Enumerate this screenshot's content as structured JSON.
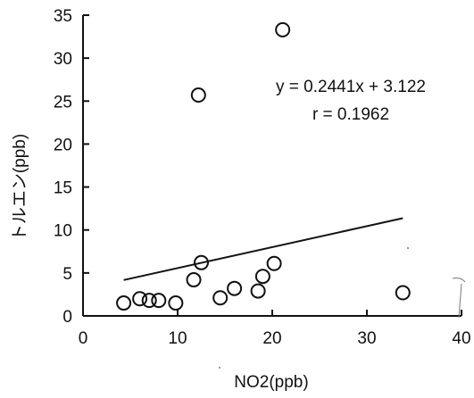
{
  "chart_data": {
    "type": "scatter",
    "xlabel": "NO2(ppb)",
    "ylabel": "トルエン(ppb)",
    "xlim": [
      0,
      40
    ],
    "ylim": [
      0,
      35
    ],
    "xticks": [
      "0",
      "10",
      "20",
      "30",
      "40"
    ],
    "yticks": [
      "0",
      "5",
      "10",
      "15",
      "20",
      "25",
      "30",
      "35"
    ],
    "grid": false,
    "points": [
      {
        "x": 4.3,
        "y": 1.5
      },
      {
        "x": 6.0,
        "y": 2.0
      },
      {
        "x": 7.0,
        "y": 1.8
      },
      {
        "x": 8.0,
        "y": 1.8
      },
      {
        "x": 9.8,
        "y": 1.5
      },
      {
        "x": 11.7,
        "y": 4.2
      },
      {
        "x": 12.2,
        "y": 25.7
      },
      {
        "x": 12.5,
        "y": 6.2
      },
      {
        "x": 14.5,
        "y": 2.1
      },
      {
        "x": 16.0,
        "y": 3.2
      },
      {
        "x": 18.5,
        "y": 2.9
      },
      {
        "x": 19.0,
        "y": 4.6
      },
      {
        "x": 20.2,
        "y": 6.1
      },
      {
        "x": 21.1,
        "y": 33.3
      },
      {
        "x": 33.8,
        "y": 2.7
      }
    ],
    "trendline": {
      "x": [
        4.3,
        33.8
      ],
      "slope": 0.2441,
      "intercept": 3.122
    },
    "annotations": {
      "equation": "y = 0.2441x + 3.122",
      "r": "r = 0.1962"
    }
  }
}
